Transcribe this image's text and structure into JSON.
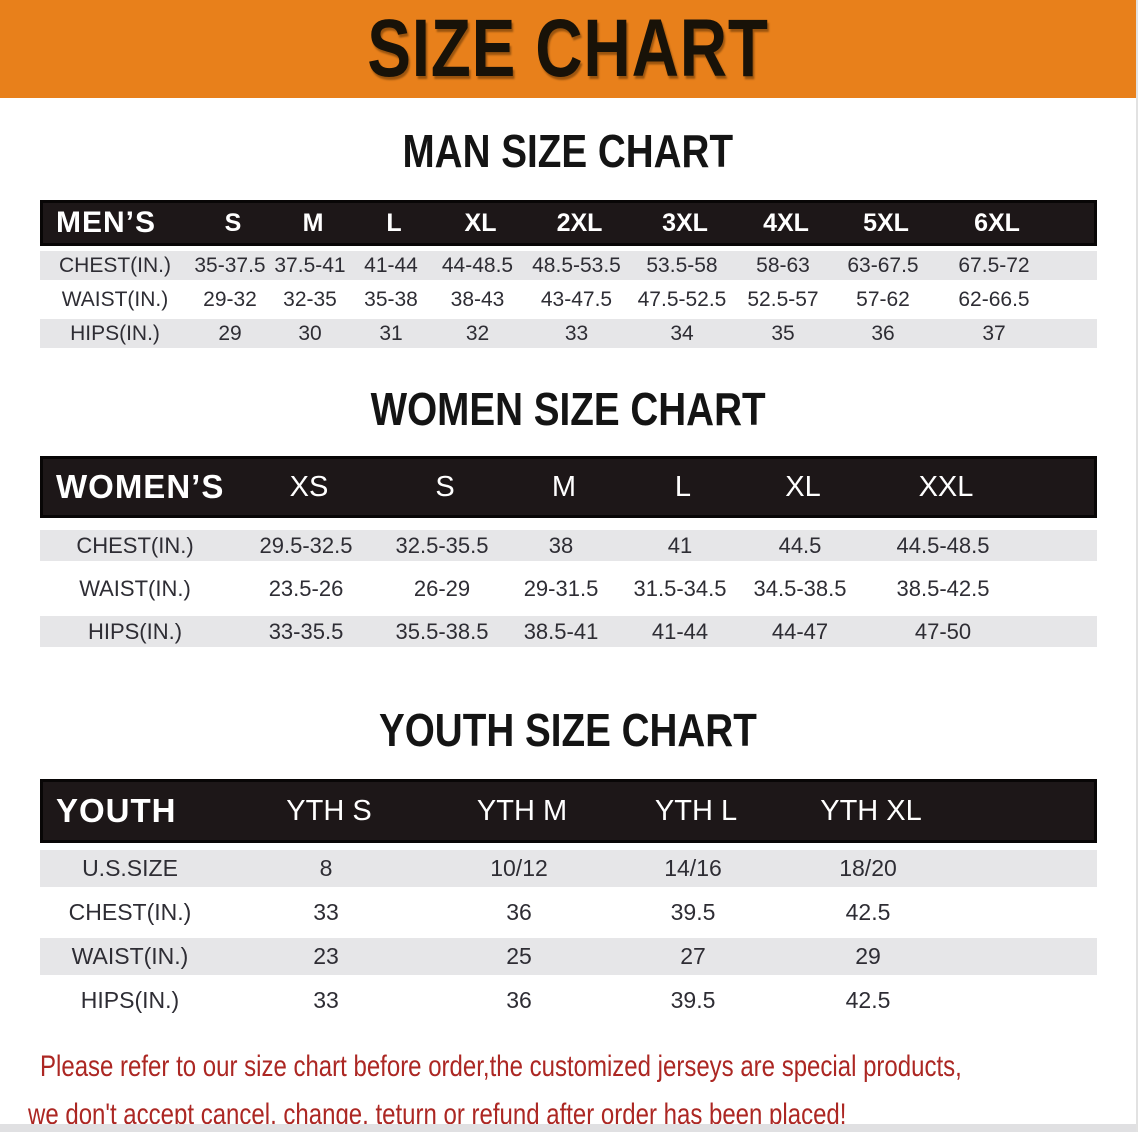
{
  "banner": {
    "title": "SIZE CHART"
  },
  "colors": {
    "banner_orange": "#E8801B",
    "band_black": "#1d1718",
    "row_gray": "#E6E6E8",
    "note_red": "#AC2723"
  },
  "sections": {
    "men": {
      "title": "MAN SIZE CHART",
      "header_label": "MEN’S",
      "sizes": [
        "S",
        "M",
        "L",
        "XL",
        "2XL",
        "3XL",
        "4XL",
        "5XL",
        "6XL"
      ],
      "rows": [
        {
          "label": "CHEST(IN.)",
          "values": [
            "35-37.5",
            "37.5-41",
            "41-44",
            "44-48.5",
            "48.5-53.5",
            "53.5-58",
            "58-63",
            "63-67.5",
            "67.5-72"
          ]
        },
        {
          "label": "WAIST(IN.)",
          "values": [
            "29-32",
            "32-35",
            "35-38",
            "38-43",
            "43-47.5",
            "47.5-52.5",
            "52.5-57",
            "57-62",
            "62-66.5"
          ]
        },
        {
          "label": "HIPS(IN.)",
          "values": [
            "29",
            "30",
            "31",
            "32",
            "33",
            "34",
            "35",
            "36",
            "37"
          ]
        }
      ]
    },
    "women": {
      "title": "WOMEN SIZE CHART",
      "header_label": "WOMEN’S",
      "sizes": [
        "XS",
        "S",
        "M",
        "L",
        "XL",
        "XXL"
      ],
      "rows": [
        {
          "label": "CHEST(IN.)",
          "values": [
            "29.5-32.5",
            "32.5-35.5",
            "38",
            "41",
            "44.5",
            "44.5-48.5"
          ]
        },
        {
          "label": "WAIST(IN.)",
          "values": [
            "23.5-26",
            "26-29",
            "29-31.5",
            "31.5-34.5",
            "34.5-38.5",
            "38.5-42.5"
          ]
        },
        {
          "label": "HIPS(IN.)",
          "values": [
            "33-35.5",
            "35.5-38.5",
            "38.5-41",
            "41-44",
            "44-47",
            "47-50"
          ]
        }
      ]
    },
    "youth": {
      "title": "YOUTH SIZE CHART",
      "header_label": "YOUTH",
      "sizes": [
        "YTH S",
        "YTH M",
        "YTH L",
        "YTH XL"
      ],
      "rows": [
        {
          "label": "U.S.SIZE",
          "values": [
            "8",
            "10/12",
            "14/16",
            "18/20"
          ]
        },
        {
          "label": "CHEST(IN.)",
          "values": [
            "33",
            "36",
            "39.5",
            "42.5"
          ]
        },
        {
          "label": "WAIST(IN.)",
          "values": [
            "23",
            "25",
            "27",
            "29"
          ]
        },
        {
          "label": "HIPS(IN.)",
          "values": [
            "33",
            "36",
            "39.5",
            "42.5"
          ]
        }
      ]
    }
  },
  "note": {
    "line1": "Please refer to our size chart before order,the customized jerseys are special products,",
    "line2": "we don't accept cancel, change, teturn or refund after order has been placed!"
  }
}
